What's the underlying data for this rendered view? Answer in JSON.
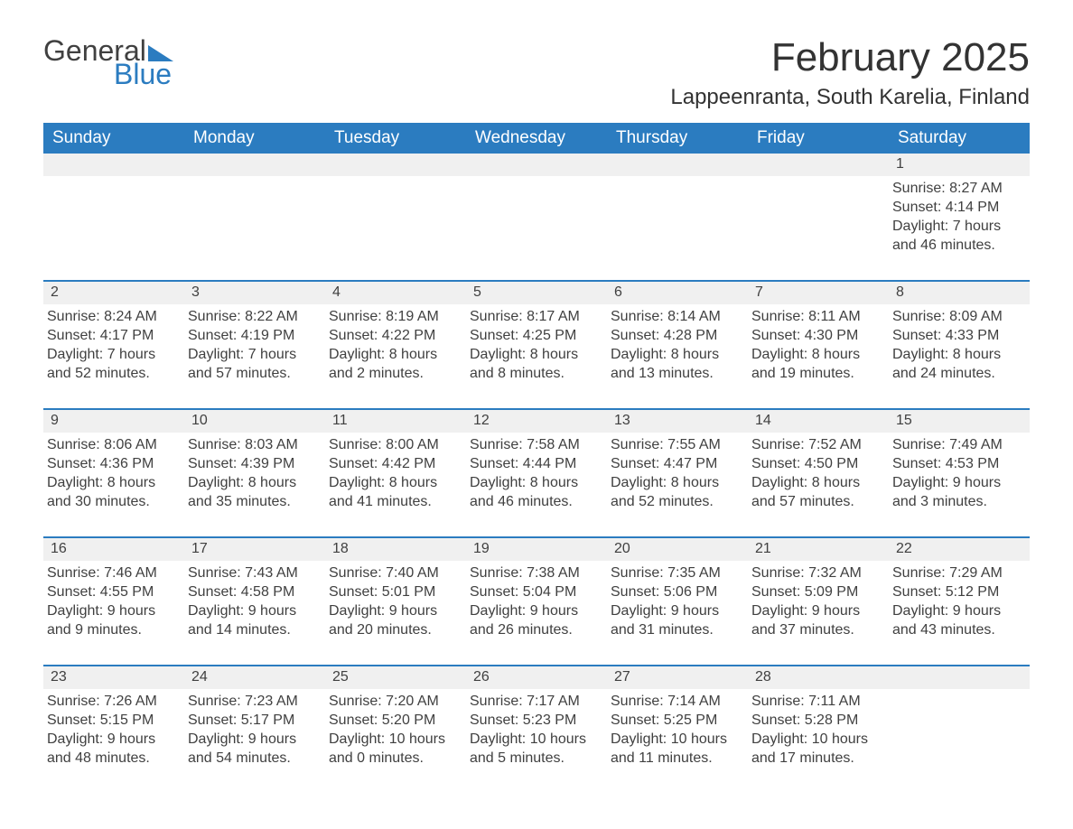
{
  "logo": {
    "word1": "General",
    "word2": "Blue"
  },
  "title": "February 2025",
  "location": "Lappeenranta, South Karelia, Finland",
  "colors": {
    "accent": "#2b7cc0",
    "daynum_bg": "#f0f0f0",
    "text": "#404040",
    "background": "#ffffff"
  },
  "weekday_headers": [
    "Sunday",
    "Monday",
    "Tuesday",
    "Wednesday",
    "Thursday",
    "Friday",
    "Saturday"
  ],
  "weeks": [
    [
      null,
      null,
      null,
      null,
      null,
      null,
      {
        "n": "1",
        "sunrise": "8:27 AM",
        "sunset": "4:14 PM",
        "dl1": "Daylight: 7 hours",
        "dl2": "and 46 minutes."
      }
    ],
    [
      {
        "n": "2",
        "sunrise": "8:24 AM",
        "sunset": "4:17 PM",
        "dl1": "Daylight: 7 hours",
        "dl2": "and 52 minutes."
      },
      {
        "n": "3",
        "sunrise": "8:22 AM",
        "sunset": "4:19 PM",
        "dl1": "Daylight: 7 hours",
        "dl2": "and 57 minutes."
      },
      {
        "n": "4",
        "sunrise": "8:19 AM",
        "sunset": "4:22 PM",
        "dl1": "Daylight: 8 hours",
        "dl2": "and 2 minutes."
      },
      {
        "n": "5",
        "sunrise": "8:17 AM",
        "sunset": "4:25 PM",
        "dl1": "Daylight: 8 hours",
        "dl2": "and 8 minutes."
      },
      {
        "n": "6",
        "sunrise": "8:14 AM",
        "sunset": "4:28 PM",
        "dl1": "Daylight: 8 hours",
        "dl2": "and 13 minutes."
      },
      {
        "n": "7",
        "sunrise": "8:11 AM",
        "sunset": "4:30 PM",
        "dl1": "Daylight: 8 hours",
        "dl2": "and 19 minutes."
      },
      {
        "n": "8",
        "sunrise": "8:09 AM",
        "sunset": "4:33 PM",
        "dl1": "Daylight: 8 hours",
        "dl2": "and 24 minutes."
      }
    ],
    [
      {
        "n": "9",
        "sunrise": "8:06 AM",
        "sunset": "4:36 PM",
        "dl1": "Daylight: 8 hours",
        "dl2": "and 30 minutes."
      },
      {
        "n": "10",
        "sunrise": "8:03 AM",
        "sunset": "4:39 PM",
        "dl1": "Daylight: 8 hours",
        "dl2": "and 35 minutes."
      },
      {
        "n": "11",
        "sunrise": "8:00 AM",
        "sunset": "4:42 PM",
        "dl1": "Daylight: 8 hours",
        "dl2": "and 41 minutes."
      },
      {
        "n": "12",
        "sunrise": "7:58 AM",
        "sunset": "4:44 PM",
        "dl1": "Daylight: 8 hours",
        "dl2": "and 46 minutes."
      },
      {
        "n": "13",
        "sunrise": "7:55 AM",
        "sunset": "4:47 PM",
        "dl1": "Daylight: 8 hours",
        "dl2": "and 52 minutes."
      },
      {
        "n": "14",
        "sunrise": "7:52 AM",
        "sunset": "4:50 PM",
        "dl1": "Daylight: 8 hours",
        "dl2": "and 57 minutes."
      },
      {
        "n": "15",
        "sunrise": "7:49 AM",
        "sunset": "4:53 PM",
        "dl1": "Daylight: 9 hours",
        "dl2": "and 3 minutes."
      }
    ],
    [
      {
        "n": "16",
        "sunrise": "7:46 AM",
        "sunset": "4:55 PM",
        "dl1": "Daylight: 9 hours",
        "dl2": "and 9 minutes."
      },
      {
        "n": "17",
        "sunrise": "7:43 AM",
        "sunset": "4:58 PM",
        "dl1": "Daylight: 9 hours",
        "dl2": "and 14 minutes."
      },
      {
        "n": "18",
        "sunrise": "7:40 AM",
        "sunset": "5:01 PM",
        "dl1": "Daylight: 9 hours",
        "dl2": "and 20 minutes."
      },
      {
        "n": "19",
        "sunrise": "7:38 AM",
        "sunset": "5:04 PM",
        "dl1": "Daylight: 9 hours",
        "dl2": "and 26 minutes."
      },
      {
        "n": "20",
        "sunrise": "7:35 AM",
        "sunset": "5:06 PM",
        "dl1": "Daylight: 9 hours",
        "dl2": "and 31 minutes."
      },
      {
        "n": "21",
        "sunrise": "7:32 AM",
        "sunset": "5:09 PM",
        "dl1": "Daylight: 9 hours",
        "dl2": "and 37 minutes."
      },
      {
        "n": "22",
        "sunrise": "7:29 AM",
        "sunset": "5:12 PM",
        "dl1": "Daylight: 9 hours",
        "dl2": "and 43 minutes."
      }
    ],
    [
      {
        "n": "23",
        "sunrise": "7:26 AM",
        "sunset": "5:15 PM",
        "dl1": "Daylight: 9 hours",
        "dl2": "and 48 minutes."
      },
      {
        "n": "24",
        "sunrise": "7:23 AM",
        "sunset": "5:17 PM",
        "dl1": "Daylight: 9 hours",
        "dl2": "and 54 minutes."
      },
      {
        "n": "25",
        "sunrise": "7:20 AM",
        "sunset": "5:20 PM",
        "dl1": "Daylight: 10 hours",
        "dl2": "and 0 minutes."
      },
      {
        "n": "26",
        "sunrise": "7:17 AM",
        "sunset": "5:23 PM",
        "dl1": "Daylight: 10 hours",
        "dl2": "and 5 minutes."
      },
      {
        "n": "27",
        "sunrise": "7:14 AM",
        "sunset": "5:25 PM",
        "dl1": "Daylight: 10 hours",
        "dl2": "and 11 minutes."
      },
      {
        "n": "28",
        "sunrise": "7:11 AM",
        "sunset": "5:28 PM",
        "dl1": "Daylight: 10 hours",
        "dl2": "and 17 minutes."
      },
      null
    ]
  ],
  "labels": {
    "sunrise_prefix": "Sunrise: ",
    "sunset_prefix": "Sunset: "
  }
}
